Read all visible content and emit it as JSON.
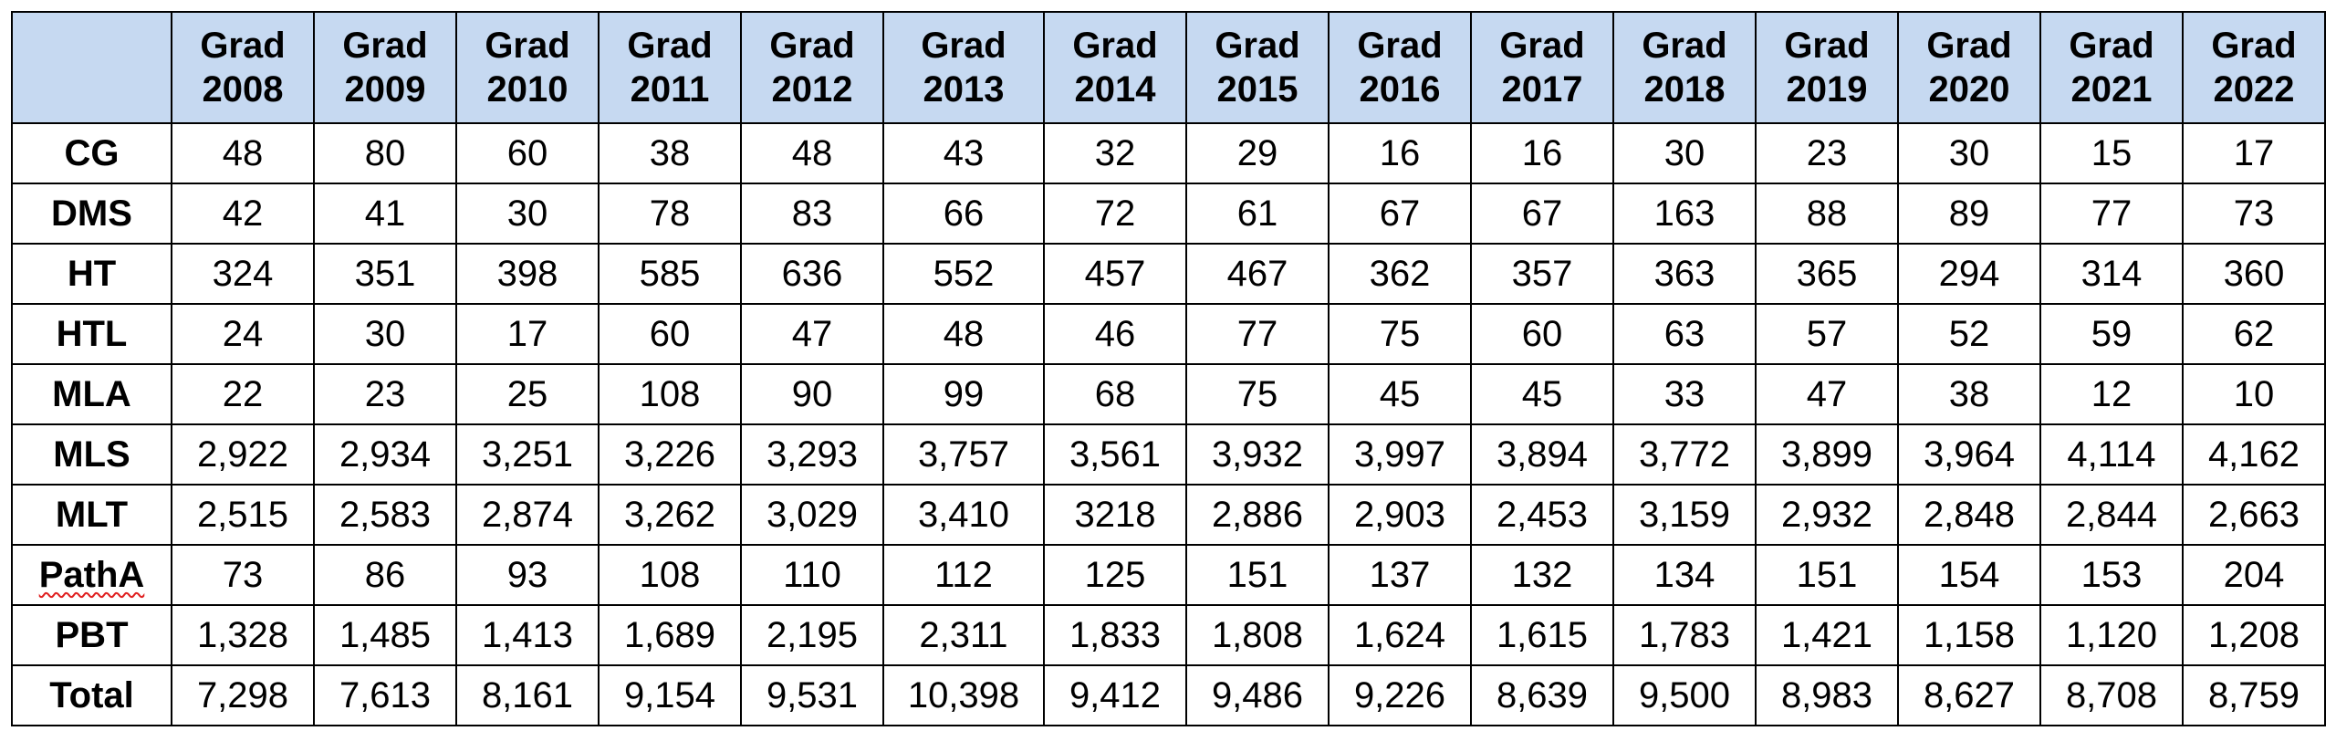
{
  "table": {
    "corner": "",
    "columns": [
      {
        "line1": "Grad",
        "line2": "2008"
      },
      {
        "line1": "Grad",
        "line2": "2009"
      },
      {
        "line1": "Grad",
        "line2": "2010"
      },
      {
        "line1": "Grad",
        "line2": "2011"
      },
      {
        "line1": "Grad",
        "line2": "2012"
      },
      {
        "line1": "Grad",
        "line2": "2013"
      },
      {
        "line1": "Grad",
        "line2": "2014"
      },
      {
        "line1": "Grad",
        "line2": "2015"
      },
      {
        "line1": "Grad",
        "line2": "2016"
      },
      {
        "line1": "Grad",
        "line2": "2017"
      },
      {
        "line1": "Grad",
        "line2": "2018"
      },
      {
        "line1": "Grad",
        "line2": "2019"
      },
      {
        "line1": "Grad",
        "line2": "2020"
      },
      {
        "line1": "Grad",
        "line2": "2021"
      },
      {
        "line1": "Grad",
        "line2": "2022"
      }
    ],
    "rows": [
      {
        "label": "CG",
        "values": [
          "48",
          "80",
          "60",
          "38",
          "48",
          "43",
          "32",
          "29",
          "16",
          "16",
          "30",
          "23",
          "30",
          "15",
          "17"
        ]
      },
      {
        "label": "DMS",
        "values": [
          "42",
          "41",
          "30",
          "78",
          "83",
          "66",
          "72",
          "61",
          "67",
          "67",
          "163",
          "88",
          "89",
          "77",
          "73"
        ]
      },
      {
        "label": "HT",
        "values": [
          "324",
          "351",
          "398",
          "585",
          "636",
          "552",
          "457",
          "467",
          "362",
          "357",
          "363",
          "365",
          "294",
          "314",
          "360"
        ]
      },
      {
        "label": "HTL",
        "values": [
          "24",
          "30",
          "17",
          "60",
          "47",
          "48",
          "46",
          "77",
          "75",
          "60",
          "63",
          "57",
          "52",
          "59",
          "62"
        ]
      },
      {
        "label": "MLA",
        "values": [
          "22",
          "23",
          "25",
          "108",
          "90",
          "99",
          "68",
          "75",
          "45",
          "45",
          "33",
          "47",
          "38",
          "12",
          "10"
        ]
      },
      {
        "label": "MLS",
        "values": [
          "2,922",
          "2,934",
          "3,251",
          "3,226",
          "3,293",
          "3,757",
          "3,561",
          "3,932",
          "3,997",
          "3,894",
          "3,772",
          "3,899",
          "3,964",
          "4,114",
          "4,162"
        ]
      },
      {
        "label": "MLT",
        "values": [
          "2,515",
          "2,583",
          "2,874",
          "3,262",
          "3,029",
          "3,410",
          "3218",
          "2,886",
          "2,903",
          "2,453",
          "3,159",
          "2,932",
          "2,848",
          "2,844",
          "2,663"
        ]
      },
      {
        "label": "PathA",
        "values": [
          "73",
          "86",
          "93",
          "108",
          "110",
          "112",
          "125",
          "151",
          "137",
          "132",
          "134",
          "151",
          "154",
          "153",
          "204"
        ]
      },
      {
        "label": "PBT",
        "values": [
          "1,328",
          "1,485",
          "1,413",
          "1,689",
          "2,195",
          "2,311",
          "1,833",
          "1,808",
          "1,624",
          "1,615",
          "1,783",
          "1,421",
          "1,158",
          "1,120",
          "1,208"
        ]
      },
      {
        "label": "Total",
        "values": [
          "7,298",
          "7,613",
          "8,161",
          "9,154",
          "9,531",
          "10,398",
          "9,412",
          "9,486",
          "9,226",
          "8,639",
          "9,500",
          "8,983",
          "8,627",
          "8,708",
          "8,759"
        ]
      }
    ]
  }
}
